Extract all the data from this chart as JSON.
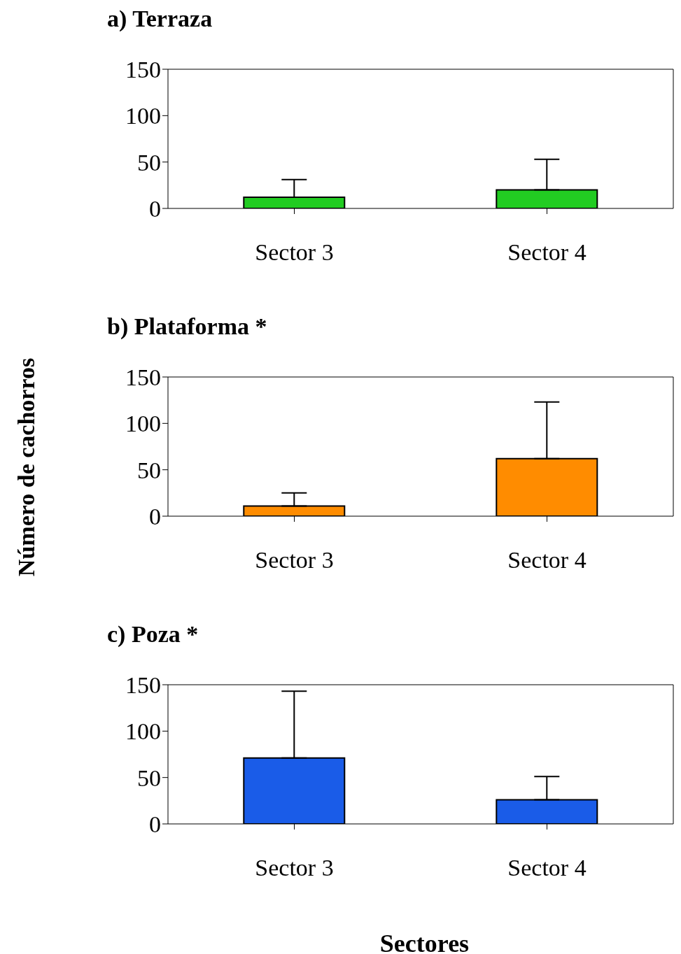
{
  "chart_data": [
    {
      "type": "bar",
      "title": "a) Terraza",
      "categories": [
        "Sector 3",
        "Sector 4"
      ],
      "values": [
        12,
        20
      ],
      "errors": [
        [
          12,
          31
        ],
        [
          20,
          53
        ]
      ],
      "color": "#22cc22",
      "ylim": [
        0,
        150
      ],
      "yticks": [
        0,
        50,
        100,
        150
      ],
      "grid": false
    },
    {
      "type": "bar",
      "title": "b) Plataforma *",
      "ylabel": "Número de cachorros",
      "categories": [
        "Sector 3",
        "Sector 4"
      ],
      "values": [
        11,
        62
      ],
      "errors": [
        [
          11,
          25
        ],
        [
          62,
          123
        ]
      ],
      "color": "#ff8c00",
      "ylim": [
        0,
        150
      ],
      "yticks": [
        0,
        50,
        100,
        150
      ],
      "grid": false
    },
    {
      "type": "bar",
      "title": "c) Poza *",
      "xlabel": "Sectores",
      "categories": [
        "Sector 3",
        "Sector 4"
      ],
      "values": [
        71,
        26
      ],
      "errors": [
        [
          71,
          143
        ],
        [
          26,
          51
        ]
      ],
      "color": "#1a5ce8",
      "ylim": [
        0,
        150
      ],
      "yticks": [
        0,
        50,
        100,
        150
      ],
      "grid": false
    }
  ]
}
